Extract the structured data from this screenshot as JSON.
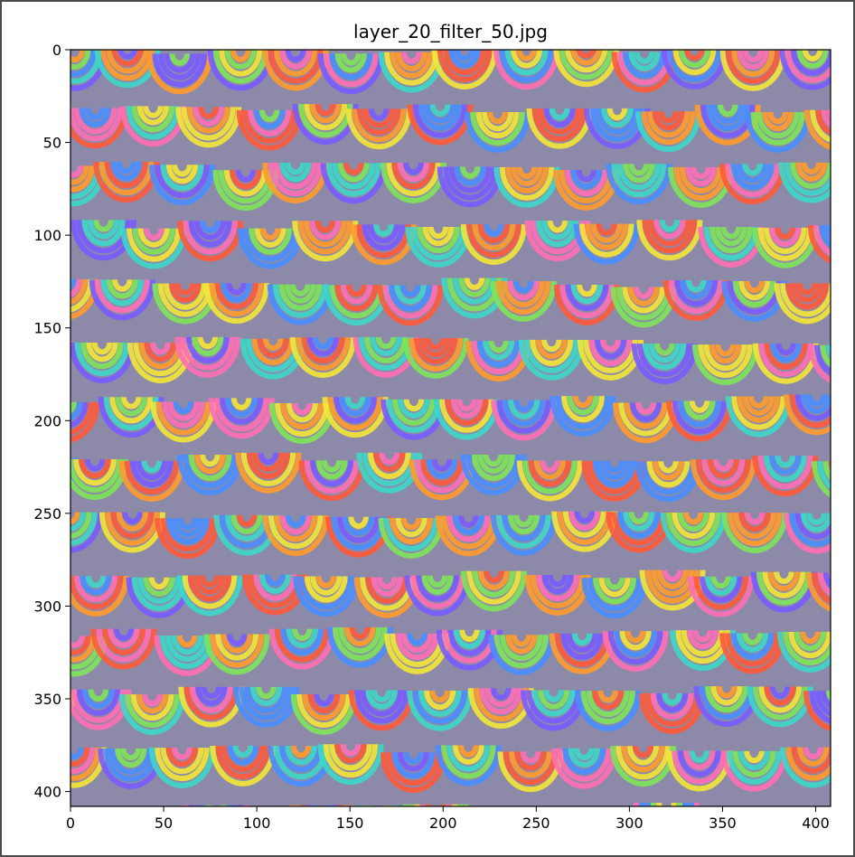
{
  "chart_data": {
    "type": "heatmap",
    "title": "layer_20_filter_50.jpg",
    "xlabel": "",
    "ylabel": "",
    "xlim": [
      0,
      408
    ],
    "ylim": [
      408,
      0
    ],
    "x_ticks": [
      0,
      50,
      100,
      150,
      200,
      250,
      300,
      350,
      400
    ],
    "y_ticks": [
      0,
      50,
      100,
      150,
      200,
      250,
      300,
      350,
      400
    ],
    "image_description_colors": [
      "#ff5a3c",
      "#ff9a2e",
      "#f2e43a",
      "#7fe35a",
      "#3fd6c8",
      "#4a8dff",
      "#7a5cff",
      "#ff6fb5"
    ],
    "grid": false
  }
}
